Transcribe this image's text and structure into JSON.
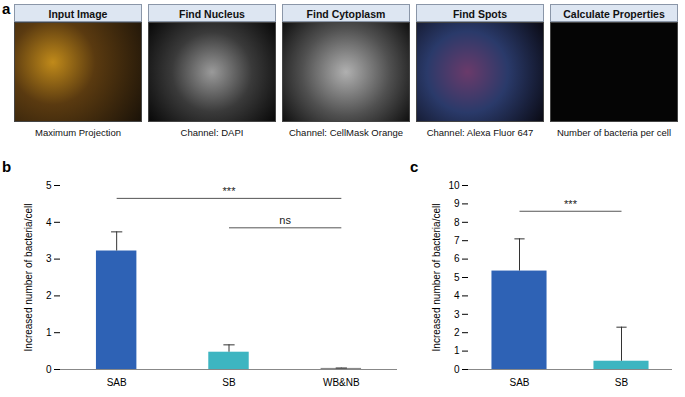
{
  "chart_data": [
    {
      "type": "bar",
      "categories": [
        "SAB",
        "SB",
        "WB&NB"
      ],
      "values": [
        3.22,
        0.47,
        0.03
      ],
      "errors": [
        0.52,
        0.2,
        0.01
      ],
      "colors": [
        "#2e62b5",
        "#3db5c1",
        "#8a8a8a"
      ],
      "ylabel": "Increased number of bacteria/cell",
      "ylim": [
        0,
        5
      ],
      "yticks": [
        0,
        1,
        2,
        3,
        4,
        5
      ],
      "grid": false,
      "significance": [
        {
          "from": "SAB",
          "to": "WB&NB",
          "label": "***",
          "y": 4.65
        },
        {
          "from": "SB",
          "to": "WB&NB",
          "label": "ns",
          "y": 3.85
        }
      ]
    },
    {
      "type": "bar",
      "categories": [
        "SAB",
        "SB"
      ],
      "values": [
        5.35,
        0.45
      ],
      "errors": [
        1.75,
        1.85
      ],
      "colors": [
        "#2e62b5",
        "#3db5c1"
      ],
      "ylabel": "Increased number of bacteria/cell",
      "ylim": [
        0,
        10
      ],
      "yticks": [
        0,
        1,
        2,
        3,
        4,
        5,
        6,
        7,
        8,
        9,
        10
      ],
      "grid": false,
      "significance": [
        {
          "from": "SAB",
          "to": "SB",
          "label": "***",
          "y": 8.6
        }
      ]
    }
  ],
  "figure": {
    "panel_labels": [
      "a",
      "b",
      "c"
    ],
    "panel_a": [
      {
        "header": "Input Image",
        "caption": "Maximum Projection"
      },
      {
        "header": "Find Nucleus",
        "caption": "Channel: DAPI"
      },
      {
        "header": "Find Cytoplasm",
        "caption": "Channel: CellMask Orange"
      },
      {
        "header": "Find Spots",
        "caption": "Channel: Alexa Fluor 647"
      },
      {
        "header": "Calculate Properties",
        "caption": "Number of bacteria per cell"
      }
    ]
  }
}
